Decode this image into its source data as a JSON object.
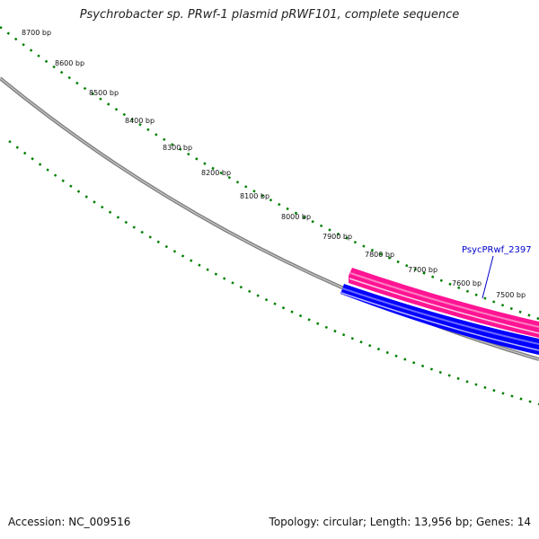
{
  "title": "Psychrobacter sp. PRwf-1 plasmid pRWF101, complete sequence",
  "accession": "Accession: NC_009516",
  "summary": "Topology: circular; Length: 13,956 bp; Genes: 14",
  "bp_labels": [
    "8700 bp",
    "8600 bp",
    "8500 bp",
    "8400 bp",
    "8300 bp",
    "8200 bp",
    "8100 bp",
    "8000 bp",
    "7900 bp",
    "7800 bp",
    "7700 bp",
    "7600 bp",
    "7500 bp"
  ],
  "gene": {
    "label": "PsycPRwf_2397",
    "forward_color": "#ff1493",
    "reverse_color": "#0000ff"
  },
  "colors": {
    "backbone": "#808080",
    "ticks": "#008000"
  }
}
